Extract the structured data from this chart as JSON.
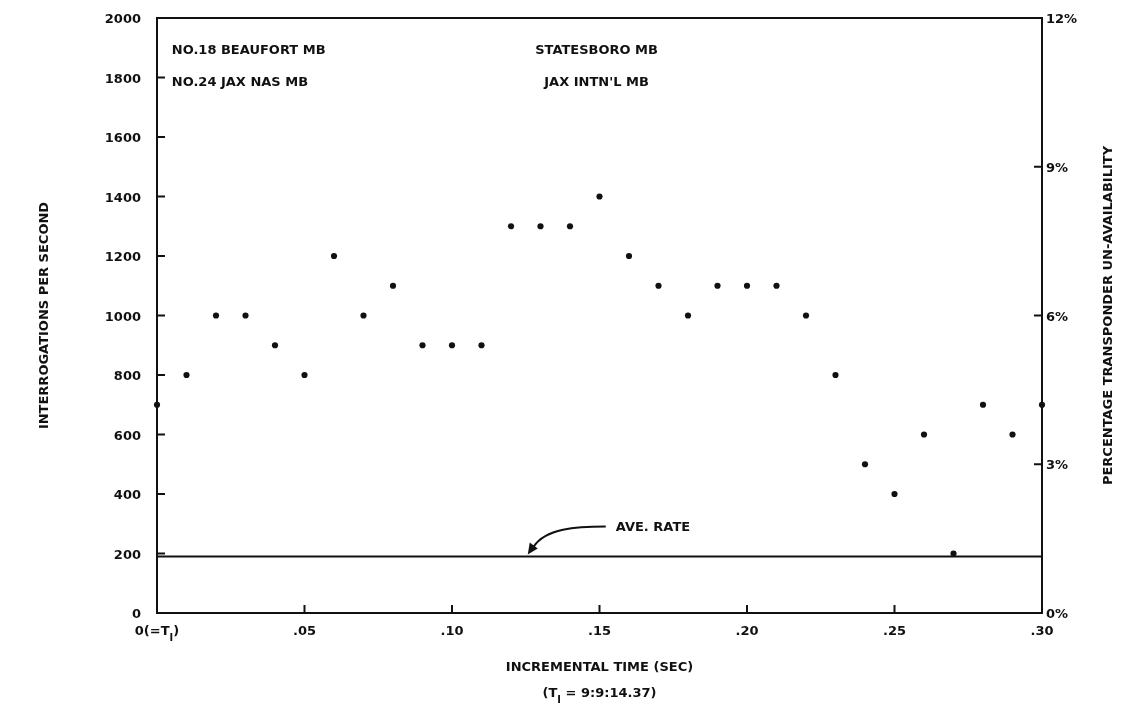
{
  "chart_data": {
    "type": "scatter",
    "xlabel": "INCREMENTAL TIME (SEC)",
    "ylabel": "INTERROGATIONS PER SECOND",
    "y2label": "PERCENTAGE TRANSPONDER UN-AVAILABILITY",
    "x": [
      0,
      0.01,
      0.02,
      0.03,
      0.04,
      0.05,
      0.06,
      0.07,
      0.08,
      0.09,
      0.1,
      0.11,
      0.12,
      0.13,
      0.14,
      0.15,
      0.16,
      0.17,
      0.18,
      0.19,
      0.2,
      0.21,
      0.22,
      0.23,
      0.24,
      0.25,
      0.26,
      0.27,
      0.28,
      0.29,
      0.3
    ],
    "series": [
      {
        "color": "#111111",
        "values": [
          700,
          800,
          1000,
          1000,
          900,
          800,
          1200,
          1000,
          1100,
          900,
          900,
          900,
          1300,
          1300,
          1300,
          1400,
          1200,
          1100,
          1000,
          1100,
          1100,
          1100,
          1000,
          800,
          500,
          400,
          600,
          200,
          700,
          600,
          700
        ]
      }
    ],
    "marker": "circle",
    "xlim": [
      0,
      0.3
    ],
    "xticks": [
      {
        "value": 0,
        "label": "0(=T$_{I}$)"
      },
      {
        "value": 0.05,
        "label": ".05"
      },
      {
        "value": 0.1,
        "label": ".10"
      },
      {
        "value": 0.15,
        "label": ".15"
      },
      {
        "value": 0.2,
        "label": ".20"
      },
      {
        "value": 0.25,
        "label": ".25"
      },
      {
        "value": 0.3,
        "label": ".30"
      }
    ],
    "ylim": [
      0,
      2000
    ],
    "yticks": [
      0,
      200,
      400,
      600,
      800,
      1000,
      1200,
      1400,
      1600,
      1800,
      2000
    ],
    "y2lim": [
      0,
      12
    ],
    "y2ticks": [
      {
        "value": 0,
        "label": "0%"
      },
      {
        "value": 3,
        "label": "3%"
      },
      {
        "value": 6,
        "label": "6%"
      },
      {
        "value": 9,
        "label": "9%"
      },
      {
        "value": 12,
        "label": "12%"
      }
    ],
    "ref_lines": [
      {
        "axis": "y",
        "value": 190,
        "label": "AVE. RATE",
        "color": "#111111"
      }
    ],
    "annotations": [
      "NO.18 BEAUFORT MB",
      "NO.24 JAX NAS MB",
      "STATESBORO MB",
      "JAX INTN'L MB",
      "(T$_{I}$ = 9:9:14.37)"
    ],
    "grid": false
  }
}
